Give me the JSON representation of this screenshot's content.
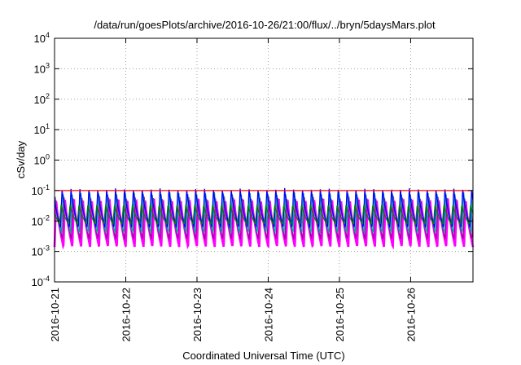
{
  "chart_data": {
    "type": "line",
    "title": "/data/run/goesPlots/archive/2016-10-26/21:00/flux/../bryn/5daysMars.plot",
    "xlabel": "Coordinated Universal Time (UTC)",
    "ylabel": "cSv/day",
    "yscale": "log",
    "ylim": [
      0.0001,
      10000
    ],
    "y_ticks": [
      {
        "base": "10",
        "exp": "-4"
      },
      {
        "base": "10",
        "exp": "-3"
      },
      {
        "base": "10",
        "exp": "-2"
      },
      {
        "base": "10",
        "exp": "-1"
      },
      {
        "base": "10",
        "exp": "0"
      },
      {
        "base": "10",
        "exp": "1"
      },
      {
        "base": "10",
        "exp": "2"
      },
      {
        "base": "10",
        "exp": "3"
      },
      {
        "base": "10",
        "exp": "4"
      }
    ],
    "xlim": [
      "2016-10-21",
      "2016-10-26 21:00"
    ],
    "x_ticks": [
      "2016-10-21",
      "2016-10-22",
      "2016-10-23",
      "2016-10-24",
      "2016-10-25",
      "2016-10-26"
    ],
    "grid": true,
    "cycles_per_day": 8,
    "series": [
      {
        "color": "#ff00ff",
        "peak": 0.055,
        "trough": 0.0014
      },
      {
        "color": "#a000a0",
        "peak": 0.065,
        "trough": 0.0025
      },
      {
        "color": "#00a0a0",
        "peak": 0.09,
        "trough": 0.004
      },
      {
        "color": "#0000ff",
        "peak": 0.12,
        "trough": 0.006
      },
      {
        "color": "#008000",
        "peak": 0.035,
        "trough": 0.008
      },
      {
        "color": "#ff0000",
        "peak": 0.1,
        "trough": 0.1
      }
    ]
  }
}
